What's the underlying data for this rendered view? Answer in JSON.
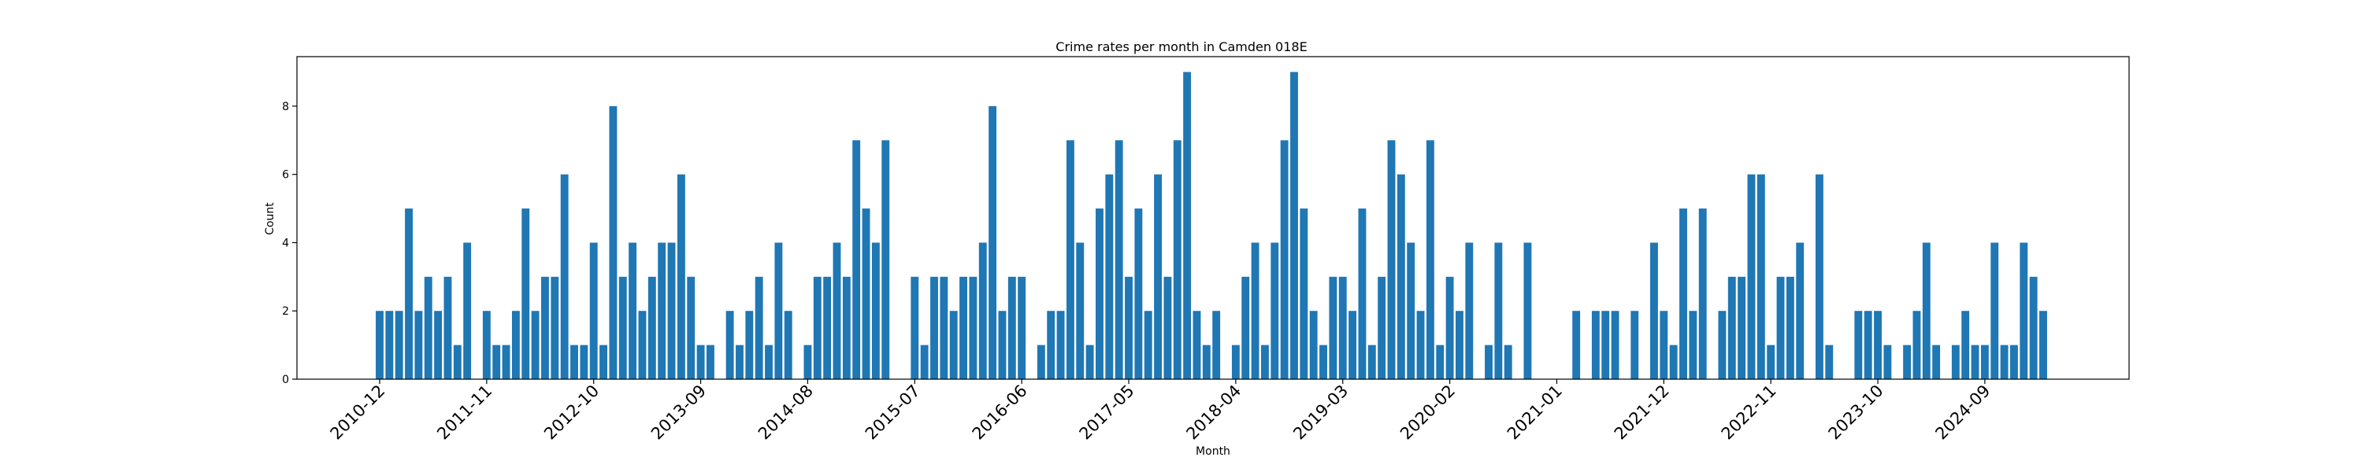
{
  "chart_data": {
    "type": "bar",
    "title": "Crime rates per month in Camden 018E",
    "xlabel": "Month",
    "ylabel": "Count",
    "ylim": [
      0,
      9.45
    ],
    "yticks": [
      0,
      2,
      4,
      6,
      8
    ],
    "x_start": "2010-12",
    "x_tick_labels": [
      "2010-12",
      "2011-11",
      "2012-10",
      "2013-09",
      "2014-08",
      "2015-07",
      "2016-06",
      "2017-05",
      "2018-04",
      "2019-03",
      "2020-02",
      "2021-01",
      "2021-12",
      "2022-11",
      "2023-10",
      "2024-09"
    ],
    "bar_color": "#1f77b4",
    "grid": false,
    "values": [
      2,
      2,
      2,
      5,
      2,
      3,
      2,
      3,
      1,
      4,
      0,
      2,
      1,
      1,
      2,
      5,
      2,
      3,
      3,
      6,
      1,
      1,
      4,
      1,
      8,
      3,
      4,
      2,
      3,
      4,
      4,
      6,
      3,
      1,
      1,
      0,
      2,
      1,
      2,
      3,
      1,
      4,
      2,
      0,
      1,
      3,
      3,
      4,
      3,
      7,
      5,
      4,
      7,
      0,
      0,
      3,
      1,
      3,
      3,
      2,
      3,
      3,
      4,
      8,
      2,
      3,
      3,
      0,
      1,
      2,
      2,
      7,
      4,
      1,
      5,
      6,
      7,
      3,
      5,
      2,
      6,
      3,
      7,
      9,
      2,
      1,
      2,
      0,
      1,
      3,
      4,
      1,
      4,
      7,
      9,
      5,
      2,
      1,
      3,
      3,
      2,
      5,
      1,
      3,
      7,
      6,
      4,
      2,
      7,
      1,
      3,
      2,
      4,
      0,
      1,
      4,
      1,
      0,
      4,
      0,
      0,
      0,
      0,
      2,
      0,
      2,
      2,
      2,
      0,
      2,
      0,
      4,
      2,
      1,
      5,
      2,
      5,
      0,
      2,
      3,
      3,
      6,
      6,
      1,
      3,
      3,
      4,
      0,
      6,
      1,
      0,
      0,
      2,
      2,
      2,
      1,
      0,
      1,
      2,
      4,
      1,
      0,
      1,
      2,
      1,
      1,
      4,
      1,
      1,
      4,
      3,
      2
    ]
  }
}
